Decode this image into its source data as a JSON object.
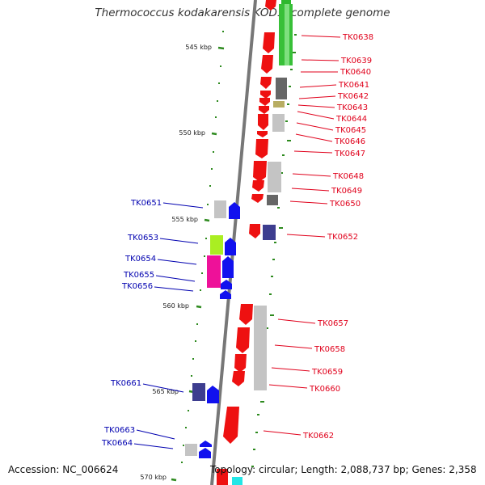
{
  "title": "Thermococcus kodakarensis KOD1, complete genome",
  "accession": "Accession: NC_006624",
  "topology": "Topology: circular; Length: 2,088,737 bp; Genes: 2,358",
  "colors": {
    "forward_label": "#e0001b",
    "reverse_label": "#0000b0",
    "backbone": "#777777",
    "tick": "#2d8a1e"
  },
  "kbp_marks": [
    "545 kbp",
    "550 kbp",
    "555 kbp",
    "560 kbp",
    "565 kbp",
    "570 kbp"
  ],
  "forward_genes": [
    "TK0638",
    "TK0639",
    "TK0640",
    "TK0641",
    "TK0642",
    "TK0643",
    "TK0644",
    "TK0645",
    "TK0646",
    "TK0647",
    "TK0648",
    "TK0649",
    "TK0650",
    "TK0652",
    "TK0657",
    "TK0658",
    "TK0659",
    "TK0660",
    "TK0662"
  ],
  "reverse_genes": [
    "TK0651",
    "TK0653",
    "TK0654",
    "TK0655",
    "TK0656",
    "TK0661",
    "TK0663",
    "TK0664"
  ]
}
